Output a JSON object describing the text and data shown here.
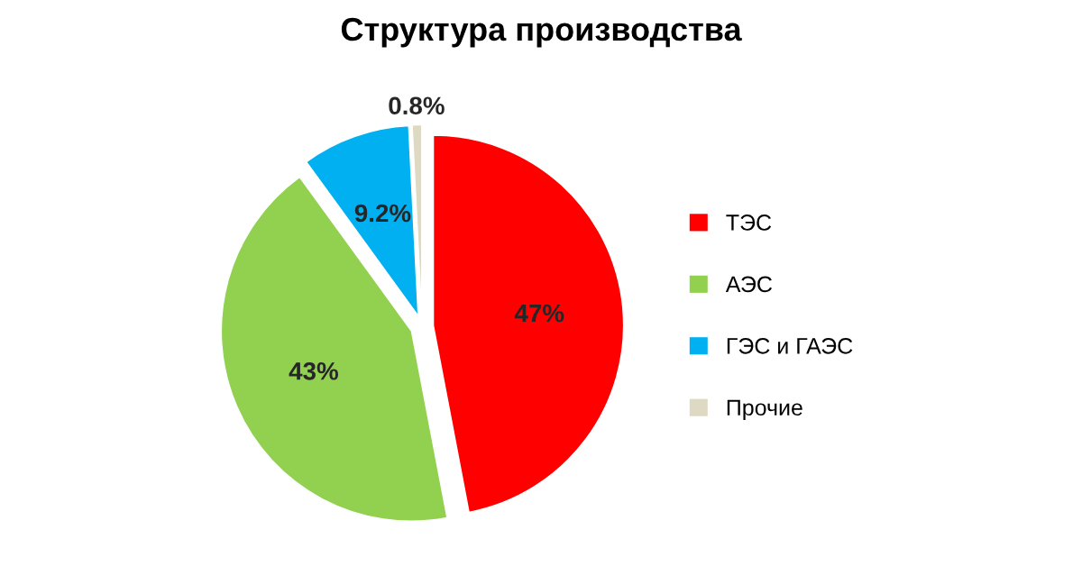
{
  "chart_data": {
    "type": "pie",
    "title": "Структура производства",
    "categories": [
      "ТЭС",
      "АЭС",
      "ГЭС и ГАЭС",
      "Прочие"
    ],
    "values": [
      47,
      43,
      9.2,
      0.8
    ],
    "colors": [
      "#ff0000",
      "#92d050",
      "#00b0f0",
      "#ddd9c3"
    ],
    "value_labels": [
      "47%",
      "43%",
      "9.2%",
      "0.8%"
    ],
    "legend": "right"
  }
}
